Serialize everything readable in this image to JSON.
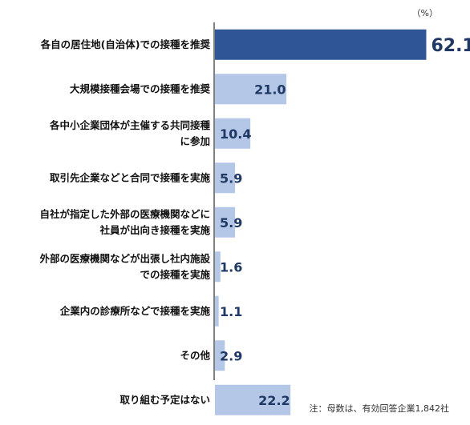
{
  "chart_data": {
    "type": "bar",
    "orientation": "horizontal",
    "unit": "（%）",
    "note": "注：母数は、有効回答企業1,842社",
    "xlim": [
      0,
      66
    ],
    "categories": [
      [
        "各自の居住地(自治体)での接種を推奨"
      ],
      [
        "大規模接種会場での接種を推奨"
      ],
      [
        "各中小企業団体が主催する共同接種",
        "に参加"
      ],
      [
        "取引先企業などと合同で接種を実施"
      ],
      [
        "自社が指定した外部の医療機関などに",
        "社員が出向き接種を実施"
      ],
      [
        "外部の医療機関などが出張し社内施設",
        "での接種を実施"
      ],
      [
        "企業内の診療所などで接種を実施"
      ],
      [
        "その他"
      ],
      [
        "取り組む予定はない"
      ]
    ],
    "values": [
      62.1,
      21.0,
      10.4,
      5.9,
      5.9,
      1.6,
      1.1,
      2.9,
      22.2
    ],
    "value_labels": [
      "62.1",
      "21.0",
      "10.4",
      "5.9",
      "5.9",
      "1.6",
      "1.1",
      "2.9",
      "22.2"
    ],
    "highlight_index": 0,
    "colors": {
      "highlight": "#2f5597",
      "bar": "#b4c7e7",
      "axis": "#000000",
      "value_text": "#1f3864"
    }
  }
}
